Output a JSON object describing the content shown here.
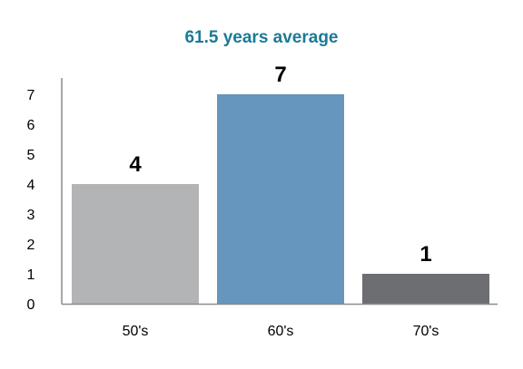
{
  "chart_data": {
    "type": "bar",
    "title": "61.5 years average",
    "xlabel": "",
    "ylabel": "",
    "categories": [
      "50's",
      "60's",
      "70's"
    ],
    "values": [
      4,
      7,
      1
    ],
    "data_labels": [
      "4",
      "7",
      "1"
    ],
    "ylim": [
      0,
      7
    ],
    "yticks": [
      0,
      1,
      2,
      3,
      4,
      5,
      6,
      7
    ],
    "grid": false,
    "legend": "none"
  },
  "colors": {
    "title": "#1b7a96",
    "bars": [
      "#b3b4b6",
      "#6695bd",
      "#6d6e71"
    ],
    "axis": "#8c8c8c"
  }
}
